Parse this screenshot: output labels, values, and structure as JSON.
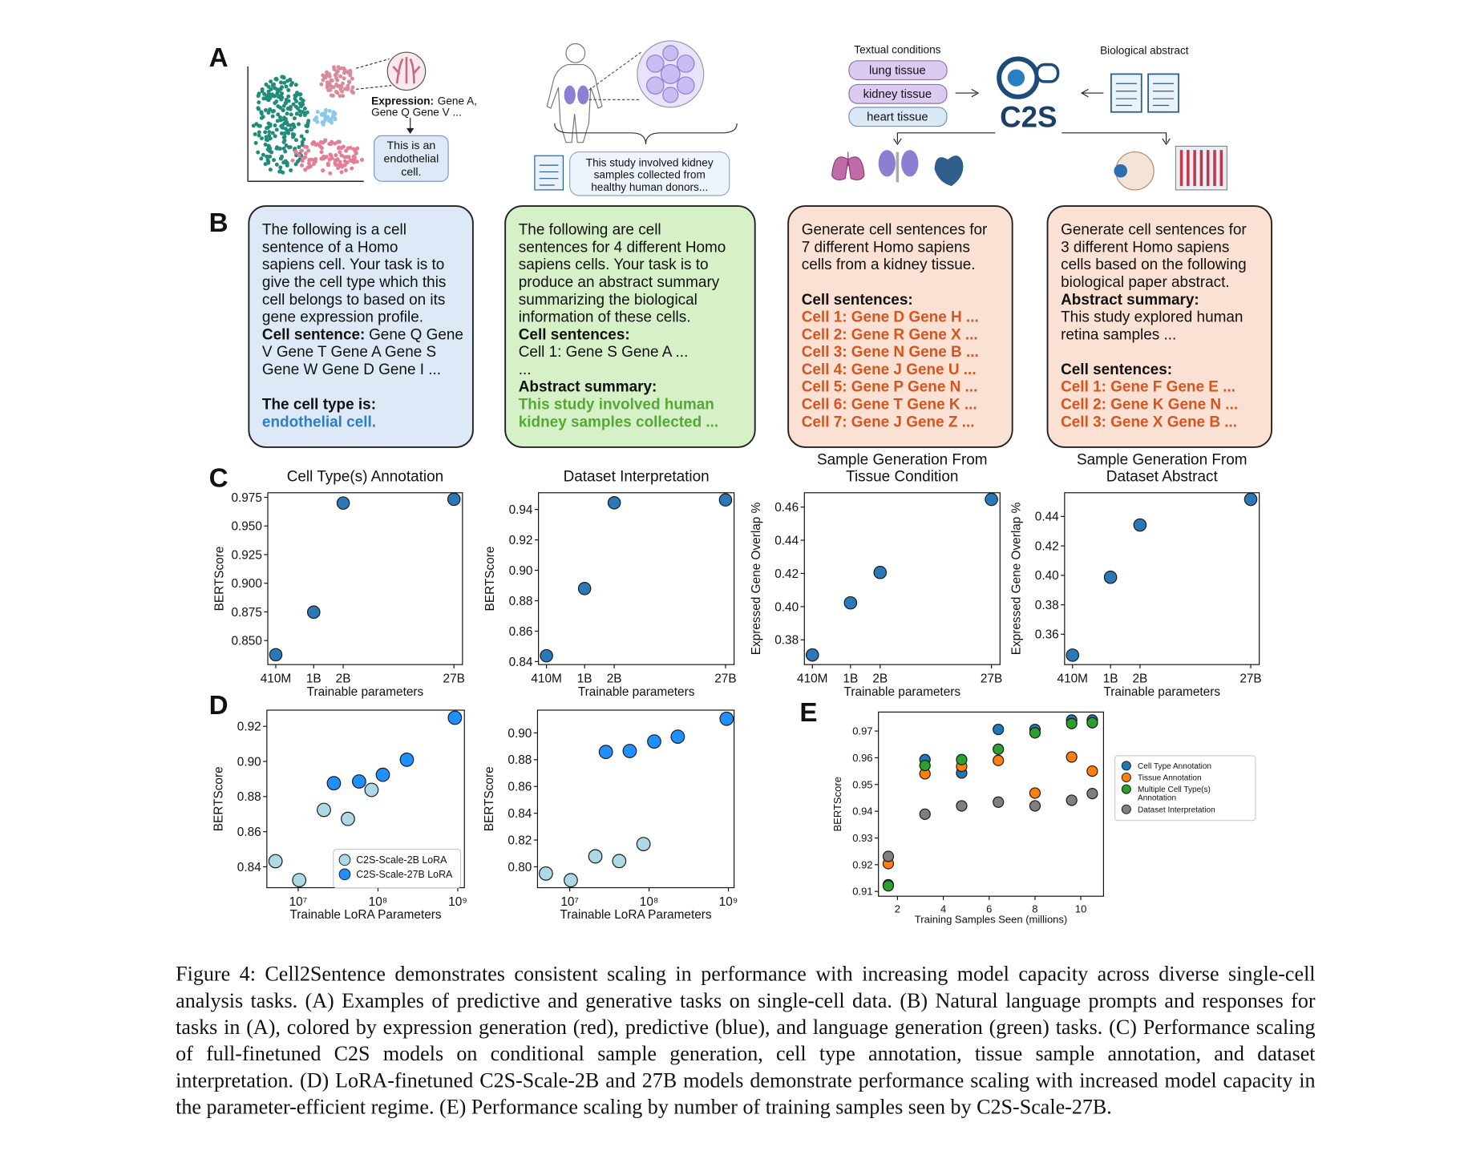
{
  "panel_labels": [
    "A",
    "B",
    "C",
    "D",
    "E"
  ],
  "panel_a": {
    "expression": {
      "label": "Expression:",
      "lines": [
        "Gene A,",
        "Gene Q Gene V ..."
      ]
    },
    "cell_type_box": [
      "This is an",
      "endothelial",
      "cell."
    ],
    "study_box": [
      "This study involved kidney",
      "samples collected from",
      "healthy human donors..."
    ],
    "textual_conditions_title": "Textual conditions",
    "conditions": [
      "lung tissue",
      "kidney tissue",
      "heart tissue"
    ],
    "logo": "C2S",
    "abstract_title": "Biological abstract"
  },
  "panel_b": {
    "boxes": [
      {
        "paragraphs": [
          [
            "The following is a cell",
            "sentence of a Homo",
            "sapiens cell. Your task is to",
            "give the cell type which this",
            "cell belongs to based on its",
            "gene expression profile.",
            {
              "label": "Cell sentence:",
              "text": "Gene Q Gene"
            },
            "V Gene T Gene A Gene S",
            "Gene W Gene D Gene I ..."
          ],
          [
            {
              "label": "The cell type is:"
            },
            {
              "answer": "endothelial cell."
            }
          ]
        ]
      },
      {
        "paragraphs": [
          [
            "The following are cell",
            "sentences for 4 different Homo",
            "sapiens cells. Your task is to",
            "produce an abstract summary",
            "summarizing the biological",
            "information of these cells.",
            {
              "label": "Cell sentences:"
            },
            "Cell 1: Gene S Gene A ...",
            "...",
            {
              "label": "Abstract summary:"
            },
            {
              "answer": "This study involved human"
            },
            {
              "answer": "kidney samples collected ..."
            }
          ]
        ]
      },
      {
        "paragraphs": [
          [
            "Generate cell sentences for",
            "7 different Homo sapiens",
            "cells from a kidney tissue."
          ],
          [
            {
              "label": "Cell sentences:"
            },
            {
              "answer": "Cell 1: Gene D Gene H ..."
            },
            {
              "answer": "Cell 2: Gene R Gene X ..."
            },
            {
              "answer": "Cell 3: Gene N Gene B ..."
            },
            {
              "answer": "Cell 4: Gene J Gene U ..."
            },
            {
              "answer": "Cell 5: Gene P Gene N ..."
            },
            {
              "answer": "Cell 6: Gene T Gene K ..."
            },
            {
              "answer": "Cell 7: Gene J Gene Z ..."
            }
          ]
        ]
      },
      {
        "paragraphs": [
          [
            "Generate cell sentences for",
            "3 different Homo sapiens",
            "cells based on the following",
            "biological paper abstract.",
            {
              "label": "Abstract summary:"
            },
            "This study explored human",
            "retina samples ..."
          ],
          [
            {
              "label": "Cell sentences:"
            },
            {
              "answer": "Cell 1: Gene F Gene E ..."
            },
            {
              "answer": "Cell 2: Gene K Gene N ..."
            },
            {
              "answer": "Cell 3: Gene X Gene B ..."
            }
          ]
        ]
      }
    ]
  },
  "chart_data": [
    {
      "type": "scatter",
      "title": "Cell Type(s) Annotation",
      "xlabel": "Trainable parameters",
      "ylabel": "BERTScore",
      "xscale": "log",
      "color": "#2a78b8",
      "x": [
        410000000,
        1000000000,
        2000000000,
        27000000000
      ],
      "values": [
        0.8376,
        0.8748,
        0.97,
        0.9733
      ],
      "xlim": [
        340000000,
        33000000000
      ],
      "xticks": [
        {
          "value": 410000000,
          "label": "410M"
        },
        {
          "value": 1000000000,
          "label": "1B"
        },
        {
          "value": 2000000000,
          "label": "2B"
        },
        {
          "value": 27000000000,
          "label": "27B"
        }
      ],
      "ylim": [
        0.829,
        0.979
      ],
      "yticks": [
        {
          "value": 0.85,
          "label": "0.850"
        },
        0.875,
        {
          "value": 0.9,
          "label": "0.900"
        },
        0.925,
        {
          "value": 0.95,
          "label": "0.950"
        },
        0.975
      ]
    },
    {
      "type": "scatter",
      "title": "Dataset Interpretation",
      "xlabel": "Trainable parameters",
      "ylabel": "BERTScore",
      "xscale": "log",
      "color": "#2a78b8",
      "x": [
        410000000,
        1000000000,
        2000000000,
        27000000000
      ],
      "values": [
        0.8438,
        0.888,
        0.9444,
        0.9463
      ],
      "xlim": [
        340000000,
        33000000000
      ],
      "xticks": [
        {
          "value": 410000000,
          "label": "410M"
        },
        {
          "value": 1000000000,
          "label": "1B"
        },
        {
          "value": 2000000000,
          "label": "2B"
        },
        {
          "value": 27000000000,
          "label": "27B"
        }
      ],
      "ylim": [
        0.838,
        0.951
      ],
      "yticks": [
        0.84,
        0.86,
        0.88,
        {
          "value": 0.9,
          "label": "0.90"
        },
        0.92,
        0.94
      ]
    },
    {
      "type": "scatter",
      "title": "Sample Generation From Tissue Condition",
      "xlabel": "Trainable parameters",
      "ylabel": "Expressed Gene Overlap %",
      "xscale": "log",
      "color": "#2a78b8",
      "x": [
        410000000,
        1000000000,
        2000000000,
        27000000000
      ],
      "values": [
        0.3709,
        0.4023,
        0.4206,
        0.4646
      ],
      "xlim": [
        340000000,
        33000000000
      ],
      "xticks": [
        {
          "value": 410000000,
          "label": "410M"
        },
        {
          "value": 1000000000,
          "label": "1B"
        },
        {
          "value": 2000000000,
          "label": "2B"
        },
        {
          "value": 27000000000,
          "label": "27B"
        }
      ],
      "ylim": [
        0.3651,
        0.4686
      ],
      "yticks": [
        0.38,
        {
          "value": 0.4,
          "label": "0.40"
        },
        0.42,
        0.44,
        0.46
      ]
    },
    {
      "type": "scatter",
      "title": "Sample Generation From Dataset Abstract",
      "xlabel": "Trainable parameters",
      "ylabel": "Expressed Gene Overlap %",
      "xscale": "log",
      "color": "#2a78b8",
      "x": [
        410000000,
        1000000000,
        2000000000,
        27000000000
      ],
      "values": [
        0.3458,
        0.3987,
        0.4342,
        0.4516
      ],
      "xlim": [
        340000000,
        33000000000
      ],
      "xticks": [
        {
          "value": 410000000,
          "label": "410M"
        },
        {
          "value": 1000000000,
          "label": "1B"
        },
        {
          "value": 2000000000,
          "label": "2B"
        },
        {
          "value": 27000000000,
          "label": "27B"
        }
      ],
      "ylim": [
        0.3394,
        0.4561
      ],
      "yticks": [
        0.36,
        0.38,
        {
          "value": 0.4,
          "label": "0.40"
        },
        0.42,
        0.44
      ]
    },
    {
      "type": "scatter",
      "xlabel": "Trainable LoRA Parameters",
      "ylabel": "BERTScore",
      "xscale": "log",
      "legend": "lower right",
      "series": [
        {
          "name": "C2S-Scale-2B LoRA",
          "color": "#add8e6",
          "x": [
            5200000,
            10300000,
            21000000,
            42000000,
            83000000
          ],
          "values": [
            0.8432,
            0.8324,
            0.8724,
            0.8673,
            0.8838
          ]
        },
        {
          "name": "C2S-Scale-27B LoRA",
          "color": "#1e90ff",
          "x": [
            28000000,
            58000000,
            115000000,
            230000000,
            920000000
          ],
          "values": [
            0.8876,
            0.8886,
            0.8924,
            0.901,
            0.9249
          ]
        }
      ],
      "xlim": [
        4050000,
        1210000000
      ],
      "xticks": [
        {
          "value": 10000000,
          "label": "10⁷"
        },
        {
          "value": 100000000,
          "label": "10⁸"
        },
        {
          "value": 1000000000,
          "label": "10⁹"
        }
      ],
      "ylim": [
        0.8281,
        0.9292
      ],
      "yticks": [
        0.84,
        0.86,
        0.88,
        {
          "value": 0.9,
          "label": "0.90"
        },
        0.92
      ]
    },
    {
      "type": "scatter",
      "xlabel": "Trainable LoRA Parameters",
      "ylabel": "BERTScore",
      "xscale": "log",
      "series": [
        {
          "color": "#add8e6",
          "x": [
            5000000,
            10300000,
            21000000,
            42000000,
            85000000
          ],
          "values": [
            0.795,
            0.79,
            0.8078,
            0.8043,
            0.817
          ]
        },
        {
          "color": "#1e90ff",
          "x": [
            28500000,
            57000000,
            116000000,
            230000000,
            950000000
          ],
          "values": [
            0.8858,
            0.8865,
            0.8936,
            0.8972,
            0.9106
          ]
        }
      ],
      "xlim": [
        3920000,
        1180000000
      ],
      "xticks": [
        {
          "value": 10000000,
          "label": "10⁷"
        },
        {
          "value": 100000000,
          "label": "10⁸"
        },
        {
          "value": 1000000000,
          "label": "10⁹"
        }
      ],
      "ylim": [
        0.7844,
        0.917
      ],
      "yticks": [
        {
          "value": 0.8,
          "label": "0.80"
        },
        0.82,
        0.84,
        0.86,
        0.88,
        {
          "value": 0.9,
          "label": "0.90"
        }
      ]
    },
    {
      "type": "scatter",
      "xlabel": "Training Samples Seen (millions)",
      "ylabel": "BERTScore",
      "legend": "outside right",
      "x": [
        1.6,
        3.2,
        4.8,
        6.4,
        8.0,
        9.6,
        10.5
      ],
      "series": [
        {
          "name": "Cell Type Annotation",
          "color": "#1f77b4",
          "values": [
            0.9125,
            0.9593,
            0.9543,
            0.9706,
            0.9706,
            0.9741,
            0.9741
          ]
        },
        {
          "name": "Tissue Annotation",
          "color": "#ff7f0e",
          "values": [
            0.9204,
            0.954,
            0.9568,
            0.959,
            0.9468,
            0.9603,
            0.955
          ]
        },
        {
          "name": "Multiple Cell Type(s) Annotation",
          "color": "#2ca02c",
          "values": [
            0.9121,
            0.9571,
            0.9593,
            0.9632,
            0.9693,
            0.9728,
            0.9731
          ]
        },
        {
          "name": "Dataset Interpretation",
          "color": "#7f7f7f",
          "values": [
            0.9231,
            0.9389,
            0.942,
            0.9434,
            0.942,
            0.9441,
            0.9466
          ]
        }
      ],
      "xlim": [
        1.17,
        10.99
      ],
      "xticks": [
        2,
        4,
        6,
        8,
        10
      ],
      "ylim": [
        0.9082,
        0.9771
      ],
      "yticks": [
        0.91,
        0.92,
        0.93,
        0.94,
        0.95,
        0.96,
        0.97
      ]
    }
  ],
  "caption": "Figure 4: Cell2Sentence demonstrates consistent scaling in performance with increasing model capacity across diverse single-cell analysis tasks. (A) Examples of predictive and generative tasks on single-cell data. (B) Natural language prompts and responses for tasks in (A), colored by expression generation (red), predictive (blue), and language generation (green) tasks. (C) Performance scaling of full-finetuned C2S models on conditional sample generation, cell type annotation, tissue sample annotation, and dataset interpretation. (D) LoRA-finetuned C2S-Scale-2B and 27B models demonstrate performance scaling with increased model capacity in the parameter-efficient regime. (E) Performance scaling by number of training samples seen by C2S-Scale-27B."
}
